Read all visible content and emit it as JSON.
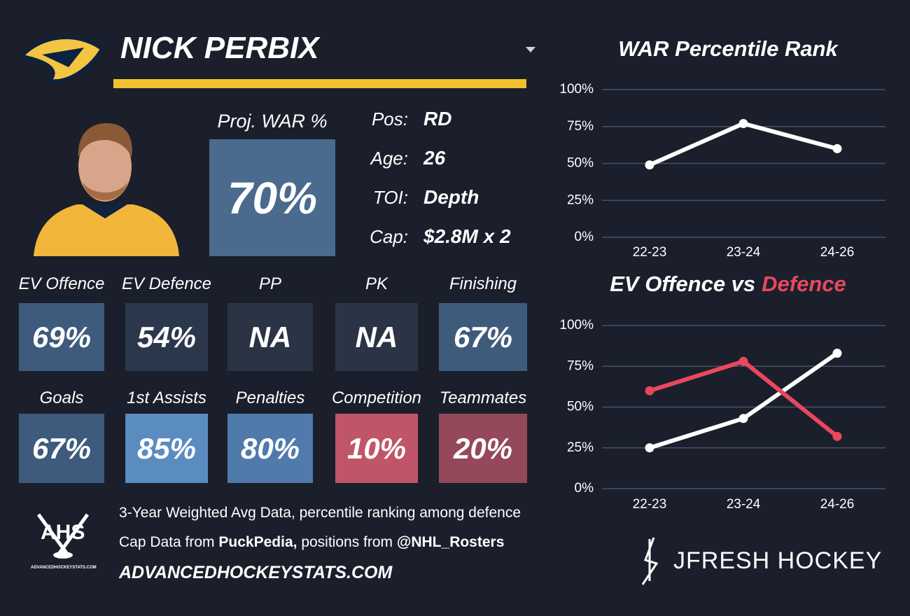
{
  "header": {
    "name": "NICK PERBIX"
  },
  "projection": {
    "label": "Proj. WAR %",
    "value": "70%",
    "color": "#4a6a8e"
  },
  "info": [
    {
      "label": "Pos:",
      "value": "RD"
    },
    {
      "label": "Age:",
      "value": "26"
    },
    {
      "label": "TOI:",
      "value": "Depth"
    },
    {
      "label": "Cap:",
      "value": "$2.8M x 2"
    }
  ],
  "tiles": [
    {
      "label": "EV Offence",
      "value": "69%",
      "color": "#3e5a7c"
    },
    {
      "label": "EV Defence",
      "value": "54%",
      "color": "#2b384c"
    },
    {
      "label": "PP",
      "value": "NA",
      "color": "#2a3444"
    },
    {
      "label": "PK",
      "value": "NA",
      "color": "#2a3444"
    },
    {
      "label": "Finishing",
      "value": "67%",
      "color": "#3f5b7c"
    },
    {
      "label": "Goals",
      "value": "67%",
      "color": "#3e5a7c"
    },
    {
      "label": "1st Assists",
      "value": "85%",
      "color": "#5a8cc0"
    },
    {
      "label": "Penalties",
      "value": "80%",
      "color": "#4f7aaa"
    },
    {
      "label": "Competition",
      "value": "10%",
      "color": "#c05468"
    },
    {
      "label": "Teammates",
      "value": "20%",
      "color": "#94485a"
    }
  ],
  "footer": {
    "note": "3-Year Weighted Avg Data, percentile ranking among defence",
    "cap_prefix": "Cap Data from",
    "cap_source": "PuckPedia,",
    "pos_prefix": "positions from",
    "pos_source": "@NHL_Rosters",
    "website": "ADVANCEDHOCKEYSTATS.COM"
  },
  "logos": {
    "ahs": "AHS",
    "ahs_url": "ADVANCEDHOCKEYSTATS.COM",
    "jfresh": "JFRESH HOCKEY"
  },
  "chart_data": [
    {
      "type": "line",
      "title": [
        "WAR Percentile Rank"
      ],
      "categories": [
        "22-23",
        "23-24",
        "24-26"
      ],
      "series": [
        {
          "color": "#ffffff",
          "values": [
            49,
            77,
            60
          ]
        }
      ],
      "ylim": [
        0,
        100
      ],
      "yticks": [
        {
          "value": 0,
          "label": "0%"
        },
        {
          "value": 25,
          "label": "25%"
        },
        {
          "value": 50,
          "label": "50%"
        },
        {
          "value": 75,
          "label": "75%"
        },
        {
          "value": 100,
          "label": "100%"
        }
      ],
      "grid": true
    },
    {
      "type": "line",
      "title": [
        "EV Offence vs",
        "Defence"
      ],
      "title_colors": [
        "#ffffff",
        "#e8485e"
      ],
      "categories": [
        "22-23",
        "23-24",
        "24-26"
      ],
      "series": [
        {
          "color": "#ffffff",
          "values": [
            25,
            43,
            83
          ]
        },
        {
          "color": "#e8485e",
          "values": [
            60,
            78,
            32
          ]
        }
      ],
      "ylim": [
        0,
        100
      ],
      "yticks": [
        {
          "value": 0,
          "label": "0%"
        },
        {
          "value": 25,
          "label": "25%"
        },
        {
          "value": 50,
          "label": "50%"
        },
        {
          "value": 75,
          "label": "75%"
        },
        {
          "value": 100,
          "label": "100%"
        }
      ],
      "grid": true
    }
  ]
}
